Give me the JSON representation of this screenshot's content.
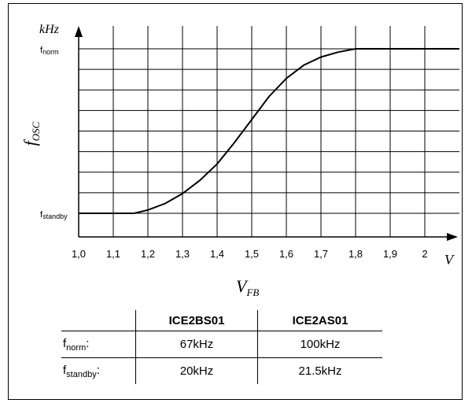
{
  "chart_data": {
    "type": "line",
    "xlabel_main": "V",
    "xlabel_sub": "FB",
    "ylabel_main": "f",
    "ylabel_sub": "OSC",
    "x_unit": "V",
    "y_unit": "kHz",
    "x_ticks": [
      "1,0",
      "1,1",
      "1,2",
      "1,3",
      "1,4",
      "1,5",
      "1,6",
      "1,7",
      "1,8",
      "1,9",
      "2"
    ],
    "xlim": [
      1.0,
      2.1
    ],
    "ylim": [
      0,
      1.1
    ],
    "y_ticks": [
      {
        "value": 0,
        "label_main": "f",
        "label_sub": "standby"
      },
      {
        "value": 1,
        "label_main": "f",
        "label_sub": "norm"
      }
    ],
    "grid": true,
    "x": [
      1.0,
      1.16,
      1.2,
      1.25,
      1.3,
      1.35,
      1.4,
      1.45,
      1.5,
      1.55,
      1.6,
      1.65,
      1.7,
      1.75,
      1.8,
      2.1
    ],
    "y": [
      0,
      0,
      0.02,
      0.06,
      0.12,
      0.2,
      0.3,
      0.43,
      0.57,
      0.71,
      0.82,
      0.9,
      0.95,
      0.98,
      1.0,
      1.0
    ]
  },
  "table": {
    "headers": [
      "",
      "ICE2BS01",
      "ICE2AS01"
    ],
    "rows": [
      {
        "label_main": "f",
        "label_sub": "norm",
        "label_suffix": ":",
        "values": [
          "67kHz",
          "100kHz"
        ]
      },
      {
        "label_main": "f",
        "label_sub": "standby",
        "label_suffix": ":",
        "values": [
          "20kHz",
          "21.5kHz"
        ]
      }
    ]
  }
}
